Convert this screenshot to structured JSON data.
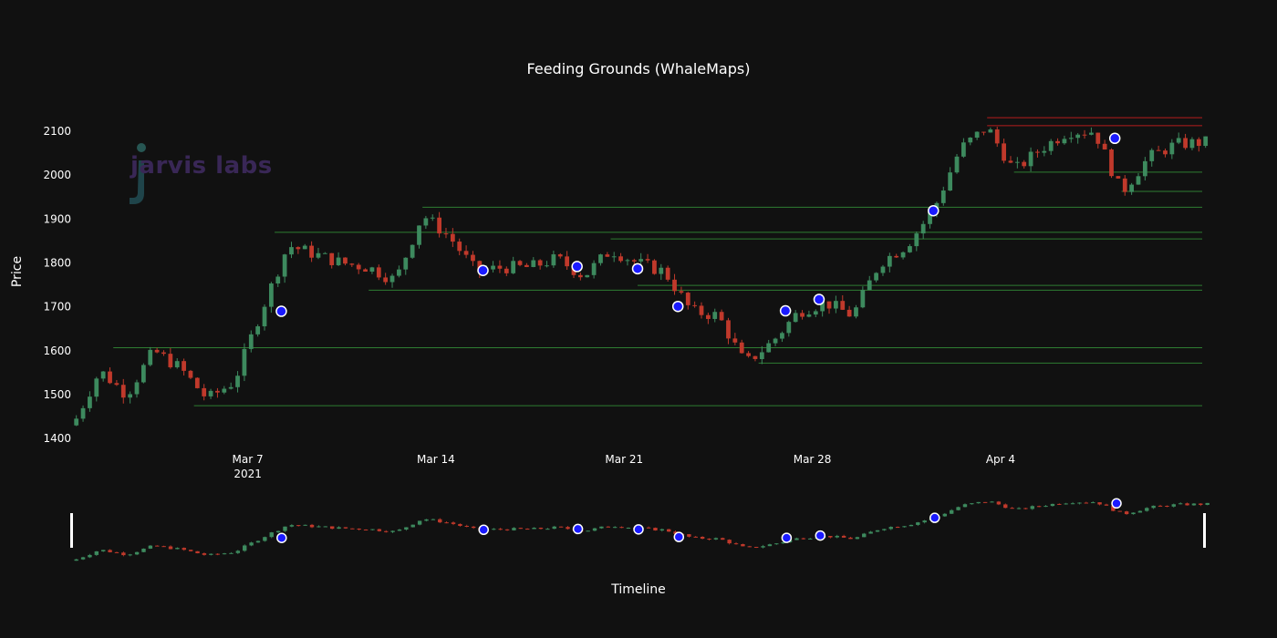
{
  "chart_data": {
    "type": "candlestick",
    "title": "Feeding Grounds (WhaleMaps)",
    "ylabel": "Price",
    "xlabel": "Timeline",
    "watermark_text": "jarvis labs",
    "ylim": [
      1390,
      2150
    ],
    "xlim": [
      "2021-02-28T12:00",
      "2021-04-11T12:00"
    ],
    "y_ticks": [
      1400,
      1500,
      1600,
      1700,
      1800,
      1900,
      2000,
      2100
    ],
    "x_ticks": [
      {
        "date": "2021-03-07",
        "label": "Mar 7",
        "sublabel": "2021"
      },
      {
        "date": "2021-03-14",
        "label": "Mar 14",
        "sublabel": ""
      },
      {
        "date": "2021-03-21",
        "label": "Mar 21",
        "sublabel": ""
      },
      {
        "date": "2021-03-28",
        "label": "Mar 28",
        "sublabel": ""
      },
      {
        "date": "2021-04-04",
        "label": "Apr 4",
        "sublabel": ""
      }
    ],
    "colors": {
      "background": "#111111",
      "increasing": "#3d8a5e",
      "decreasing": "#c0392b",
      "support_line": "#2e7d32",
      "resistance_line": "#b71c1c",
      "marker_fill": "#1a1aff",
      "marker_stroke": "#ffffff",
      "text": "#ffffff"
    },
    "anchors": [
      [
        "2021-02-28T12:00",
        1430
      ],
      [
        "2021-03-01T12:00",
        1555
      ],
      [
        "2021-03-02T12:00",
        1500
      ],
      [
        "2021-03-03T12:00",
        1600
      ],
      [
        "2021-03-04T12:00",
        1560
      ],
      [
        "2021-03-05T12:00",
        1490
      ],
      [
        "2021-03-06T12:00",
        1530
      ],
      [
        "2021-03-07T12:00",
        1690
      ],
      [
        "2021-03-08T12:00",
        1840
      ],
      [
        "2021-03-09T12:00",
        1820
      ],
      [
        "2021-03-10T12:00",
        1800
      ],
      [
        "2021-03-11T12:00",
        1790
      ],
      [
        "2021-03-12T12:00",
        1760
      ],
      [
        "2021-03-13T12:00",
        1910
      ],
      [
        "2021-03-14T12:00",
        1860
      ],
      [
        "2021-03-15T12:00",
        1780
      ],
      [
        "2021-03-16T12:00",
        1790
      ],
      [
        "2021-03-17T12:00",
        1790
      ],
      [
        "2021-03-18T12:00",
        1810
      ],
      [
        "2021-03-19T12:00",
        1770
      ],
      [
        "2021-03-20T12:00",
        1830
      ],
      [
        "2021-03-21T12:00",
        1800
      ],
      [
        "2021-03-22T12:00",
        1780
      ],
      [
        "2021-03-23T12:00",
        1690
      ],
      [
        "2021-03-24T12:00",
        1680
      ],
      [
        "2021-03-25T12:00",
        1570
      ],
      [
        "2021-03-26T12:00",
        1620
      ],
      [
        "2021-03-27T12:00",
        1690
      ],
      [
        "2021-03-28T12:00",
        1710
      ],
      [
        "2021-03-29T12:00",
        1680
      ],
      [
        "2021-03-30T12:00",
        1800
      ],
      [
        "2021-03-31T12:00",
        1840
      ],
      [
        "2021-04-01T12:00",
        1920
      ],
      [
        "2021-04-02T12:00",
        2060
      ],
      [
        "2021-04-03T12:00",
        2110
      ],
      [
        "2021-04-04T12:00",
        2010
      ],
      [
        "2021-04-05T12:00",
        2060
      ],
      [
        "2021-04-06T12:00",
        2100
      ],
      [
        "2021-04-07T12:00",
        2100
      ],
      [
        "2021-04-08T12:00",
        1960
      ],
      [
        "2021-04-09T12:00",
        2040
      ],
      [
        "2021-04-10T12:00",
        2070
      ],
      [
        "2021-04-11T12:00",
        2075
      ]
    ],
    "markers": [
      {
        "date": "2021-03-08T06:00",
        "price": 1690
      },
      {
        "date": "2021-03-15T18:00",
        "price": 1783
      },
      {
        "date": "2021-03-19T06:00",
        "price": 1792
      },
      {
        "date": "2021-03-21T12:00",
        "price": 1787
      },
      {
        "date": "2021-03-23T00:00",
        "price": 1701
      },
      {
        "date": "2021-03-27T00:00",
        "price": 1691
      },
      {
        "date": "2021-03-28T06:00",
        "price": 1717
      },
      {
        "date": "2021-04-01T12:00",
        "price": 1919
      },
      {
        "date": "2021-04-08T06:00",
        "price": 2084
      }
    ],
    "levels": [
      {
        "price": 2131,
        "start": "2021-04-03T12:00",
        "kind": "resistance"
      },
      {
        "price": 2113,
        "start": "2021-04-03T12:00",
        "kind": "resistance"
      },
      {
        "price": 2007,
        "start": "2021-04-04T12:00",
        "kind": "support"
      },
      {
        "price": 1963,
        "start": "2021-04-08T12:00",
        "kind": "support"
      },
      {
        "price": 1927,
        "start": "2021-03-13T12:00",
        "kind": "support"
      },
      {
        "price": 1870,
        "start": "2021-03-08T00:00",
        "kind": "support"
      },
      {
        "price": 1855,
        "start": "2021-03-20T12:00",
        "kind": "support"
      },
      {
        "price": 1749,
        "start": "2021-03-21T12:00",
        "kind": "support"
      },
      {
        "price": 1738,
        "start": "2021-03-11T12:00",
        "kind": "support"
      },
      {
        "price": 1607,
        "start": "2021-03-02T00:00",
        "kind": "support"
      },
      {
        "price": 1572,
        "start": "2021-03-26T00:00",
        "kind": "support"
      },
      {
        "price": 1475,
        "start": "2021-03-05T00:00",
        "kind": "support"
      }
    ]
  }
}
